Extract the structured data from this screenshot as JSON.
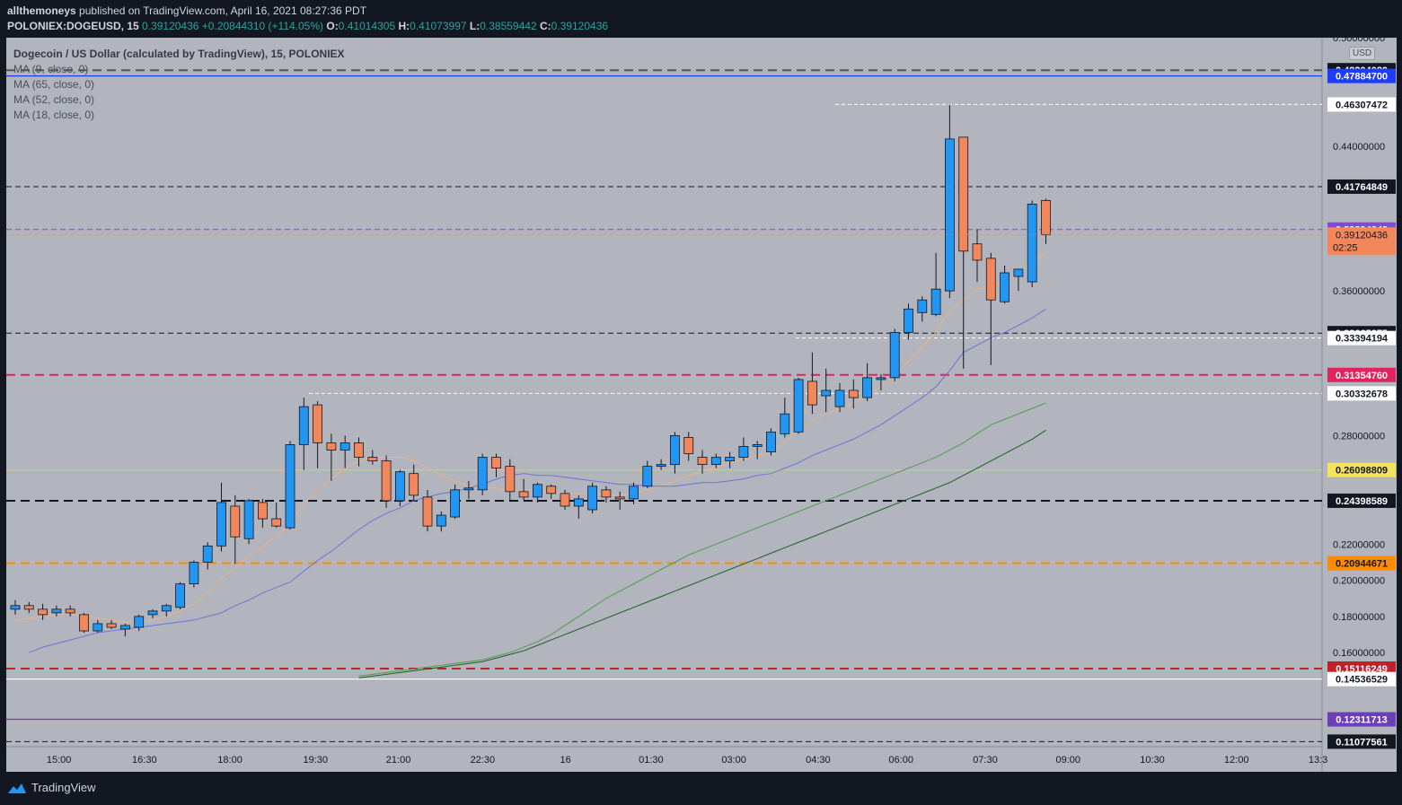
{
  "header": {
    "author": "allthemoneys",
    "published": "published on TradingView.com, April 16, 2021 08:27:36 PDT",
    "symbol": "POLONIEX:DOGEUSD, 15",
    "last": "0.39120436",
    "change": "+0.20844310 (+114.05%)",
    "o_label": "O:",
    "o": "0.41014305",
    "h_label": "H:",
    "h": "0.41073997",
    "l_label": "L:",
    "l": "0.38559442",
    "c_label": "C:",
    "c": "0.39120436"
  },
  "legend": {
    "title": "Dogecoin / US Dollar (calculated by TradingView), 15, POLONIEX",
    "ma1": "MA (9, close, 0)",
    "ma2": "MA (65, close, 0)",
    "ma3": "MA (52, close, 0)",
    "ma4": "MA (18, close, 0)"
  },
  "currency": "USD",
  "countdown": "02:25",
  "footer": {
    "brand": "TradingView"
  },
  "colors": {
    "background": "#b2b5be",
    "up": "#2196f3",
    "down": "#f2875b",
    "frame": "#131722",
    "axis_bg": "#b2b5be"
  },
  "chart_data": {
    "type": "candlestick",
    "ylim": [
      0.108,
      0.5
    ],
    "y_ticks": [
      "0.16000000",
      "0.18000000",
      "0.20000000",
      "0.22000000",
      "0.28000000",
      "0.36000000",
      "0.44000000",
      "0.50000000"
    ],
    "x_ticks": [
      "15:00",
      "16:30",
      "18:00",
      "19:30",
      "21:00",
      "22:30",
      "16",
      "01:30",
      "03:00",
      "04:30",
      "06:00",
      "07:30",
      "09:00",
      "10:30",
      "12:00",
      "13:3"
    ],
    "candles": [
      {
        "o": 0.184,
        "h": 0.189,
        "l": 0.181,
        "c": 0.186
      },
      {
        "o": 0.186,
        "h": 0.188,
        "l": 0.182,
        "c": 0.184
      },
      {
        "o": 0.184,
        "h": 0.187,
        "l": 0.178,
        "c": 0.181
      },
      {
        "o": 0.182,
        "h": 0.186,
        "l": 0.18,
        "c": 0.184
      },
      {
        "o": 0.184,
        "h": 0.186,
        "l": 0.18,
        "c": 0.182
      },
      {
        "o": 0.181,
        "h": 0.182,
        "l": 0.171,
        "c": 0.172
      },
      {
        "o": 0.172,
        "h": 0.178,
        "l": 0.171,
        "c": 0.176
      },
      {
        "o": 0.176,
        "h": 0.178,
        "l": 0.173,
        "c": 0.174
      },
      {
        "o": 0.173,
        "h": 0.176,
        "l": 0.169,
        "c": 0.175
      },
      {
        "o": 0.174,
        "h": 0.181,
        "l": 0.172,
        "c": 0.18
      },
      {
        "o": 0.181,
        "h": 0.184,
        "l": 0.179,
        "c": 0.183
      },
      {
        "o": 0.183,
        "h": 0.187,
        "l": 0.18,
        "c": 0.186
      },
      {
        "o": 0.185,
        "h": 0.199,
        "l": 0.184,
        "c": 0.198
      },
      {
        "o": 0.198,
        "h": 0.211,
        "l": 0.196,
        "c": 0.21
      },
      {
        "o": 0.21,
        "h": 0.221,
        "l": 0.206,
        "c": 0.219
      },
      {
        "o": 0.219,
        "h": 0.254,
        "l": 0.216,
        "c": 0.243
      },
      {
        "o": 0.241,
        "h": 0.247,
        "l": 0.209,
        "c": 0.224
      },
      {
        "o": 0.223,
        "h": 0.245,
        "l": 0.22,
        "c": 0.244
      },
      {
        "o": 0.243,
        "h": 0.245,
        "l": 0.229,
        "c": 0.234
      },
      {
        "o": 0.234,
        "h": 0.243,
        "l": 0.229,
        "c": 0.23
      },
      {
        "o": 0.229,
        "h": 0.277,
        "l": 0.228,
        "c": 0.275
      },
      {
        "o": 0.275,
        "h": 0.301,
        "l": 0.261,
        "c": 0.296
      },
      {
        "o": 0.297,
        "h": 0.299,
        "l": 0.262,
        "c": 0.276
      },
      {
        "o": 0.276,
        "h": 0.281,
        "l": 0.255,
        "c": 0.272
      },
      {
        "o": 0.272,
        "h": 0.28,
        "l": 0.262,
        "c": 0.276
      },
      {
        "o": 0.276,
        "h": 0.279,
        "l": 0.263,
        "c": 0.268
      },
      {
        "o": 0.268,
        "h": 0.272,
        "l": 0.264,
        "c": 0.266
      },
      {
        "o": 0.266,
        "h": 0.269,
        "l": 0.24,
        "c": 0.244
      },
      {
        "o": 0.244,
        "h": 0.261,
        "l": 0.241,
        "c": 0.26
      },
      {
        "o": 0.259,
        "h": 0.264,
        "l": 0.244,
        "c": 0.247
      },
      {
        "o": 0.246,
        "h": 0.25,
        "l": 0.227,
        "c": 0.23
      },
      {
        "o": 0.23,
        "h": 0.238,
        "l": 0.227,
        "c": 0.236
      },
      {
        "o": 0.235,
        "h": 0.253,
        "l": 0.234,
        "c": 0.25
      },
      {
        "o": 0.25,
        "h": 0.255,
        "l": 0.245,
        "c": 0.251
      },
      {
        "o": 0.25,
        "h": 0.27,
        "l": 0.247,
        "c": 0.268
      },
      {
        "o": 0.268,
        "h": 0.27,
        "l": 0.257,
        "c": 0.262
      },
      {
        "o": 0.263,
        "h": 0.267,
        "l": 0.244,
        "c": 0.249
      },
      {
        "o": 0.249,
        "h": 0.256,
        "l": 0.244,
        "c": 0.246
      },
      {
        "o": 0.246,
        "h": 0.254,
        "l": 0.243,
        "c": 0.253
      },
      {
        "o": 0.252,
        "h": 0.253,
        "l": 0.245,
        "c": 0.248
      },
      {
        "o": 0.248,
        "h": 0.25,
        "l": 0.239,
        "c": 0.241
      },
      {
        "o": 0.241,
        "h": 0.247,
        "l": 0.234,
        "c": 0.245
      },
      {
        "o": 0.239,
        "h": 0.254,
        "l": 0.237,
        "c": 0.252
      },
      {
        "o": 0.25,
        "h": 0.252,
        "l": 0.243,
        "c": 0.246
      },
      {
        "o": 0.246,
        "h": 0.249,
        "l": 0.239,
        "c": 0.245
      },
      {
        "o": 0.245,
        "h": 0.254,
        "l": 0.242,
        "c": 0.252
      },
      {
        "o": 0.252,
        "h": 0.266,
        "l": 0.251,
        "c": 0.263
      },
      {
        "o": 0.263,
        "h": 0.267,
        "l": 0.261,
        "c": 0.264
      },
      {
        "o": 0.264,
        "h": 0.282,
        "l": 0.259,
        "c": 0.28
      },
      {
        "o": 0.279,
        "h": 0.282,
        "l": 0.266,
        "c": 0.27
      },
      {
        "o": 0.268,
        "h": 0.272,
        "l": 0.259,
        "c": 0.264
      },
      {
        "o": 0.264,
        "h": 0.27,
        "l": 0.262,
        "c": 0.268
      },
      {
        "o": 0.266,
        "h": 0.271,
        "l": 0.262,
        "c": 0.268
      },
      {
        "o": 0.268,
        "h": 0.279,
        "l": 0.266,
        "c": 0.274
      },
      {
        "o": 0.274,
        "h": 0.277,
        "l": 0.267,
        "c": 0.275
      },
      {
        "o": 0.271,
        "h": 0.284,
        "l": 0.269,
        "c": 0.282
      },
      {
        "o": 0.281,
        "h": 0.301,
        "l": 0.279,
        "c": 0.292
      },
      {
        "o": 0.282,
        "h": 0.312,
        "l": 0.281,
        "c": 0.311
      },
      {
        "o": 0.31,
        "h": 0.326,
        "l": 0.292,
        "c": 0.297
      },
      {
        "o": 0.302,
        "h": 0.317,
        "l": 0.293,
        "c": 0.305
      },
      {
        "o": 0.296,
        "h": 0.309,
        "l": 0.293,
        "c": 0.305
      },
      {
        "o": 0.305,
        "h": 0.311,
        "l": 0.295,
        "c": 0.301
      },
      {
        "o": 0.301,
        "h": 0.32,
        "l": 0.299,
        "c": 0.312
      },
      {
        "o": 0.311,
        "h": 0.314,
        "l": 0.305,
        "c": 0.312
      },
      {
        "o": 0.312,
        "h": 0.339,
        "l": 0.31,
        "c": 0.337
      },
      {
        "o": 0.337,
        "h": 0.353,
        "l": 0.333,
        "c": 0.35
      },
      {
        "o": 0.348,
        "h": 0.357,
        "l": 0.343,
        "c": 0.355
      },
      {
        "o": 0.347,
        "h": 0.381,
        "l": 0.346,
        "c": 0.361
      },
      {
        "o": 0.36,
        "h": 0.463,
        "l": 0.356,
        "c": 0.444
      },
      {
        "o": 0.445,
        "h": 0.445,
        "l": 0.317,
        "c": 0.382
      },
      {
        "o": 0.386,
        "h": 0.394,
        "l": 0.365,
        "c": 0.377
      },
      {
        "o": 0.378,
        "h": 0.381,
        "l": 0.319,
        "c": 0.355
      },
      {
        "o": 0.354,
        "h": 0.374,
        "l": 0.353,
        "c": 0.37
      },
      {
        "o": 0.368,
        "h": 0.37,
        "l": 0.36,
        "c": 0.372
      },
      {
        "o": 0.365,
        "h": 0.41,
        "l": 0.362,
        "c": 0.408
      },
      {
        "o": 0.41,
        "h": 0.411,
        "l": 0.386,
        "c": 0.391
      }
    ],
    "series": [
      {
        "name": "MA (9, close, 0)",
        "color": "#e8b48a",
        "values": [
          0.178,
          0.179,
          0.18,
          0.181,
          0.181,
          0.18,
          0.179,
          0.178,
          0.177,
          0.177,
          0.178,
          0.18,
          0.183,
          0.187,
          0.193,
          0.201,
          0.207,
          0.213,
          0.219,
          0.224,
          0.232,
          0.242,
          0.25,
          0.256,
          0.262,
          0.266,
          0.268,
          0.268,
          0.268,
          0.266,
          0.262,
          0.258,
          0.255,
          0.252,
          0.251,
          0.251,
          0.25,
          0.25,
          0.25,
          0.249,
          0.248,
          0.248,
          0.248,
          0.247,
          0.247,
          0.248,
          0.25,
          0.252,
          0.255,
          0.258,
          0.26,
          0.263,
          0.265,
          0.267,
          0.269,
          0.271,
          0.276,
          0.283,
          0.288,
          0.292,
          0.295,
          0.298,
          0.302,
          0.307,
          0.313,
          0.321,
          0.329,
          0.337,
          0.349,
          0.355,
          0.361,
          0.362,
          0.366,
          0.37,
          0.375,
          0.382
        ]
      },
      {
        "name": "MA (18, close, 0)",
        "color": "#6f73d6",
        "values": [
          0.16,
          0.163,
          0.165,
          0.167,
          0.169,
          0.171,
          0.172,
          0.173,
          0.174,
          0.175,
          0.176,
          0.177,
          0.178,
          0.18,
          0.182,
          0.186,
          0.189,
          0.193,
          0.196,
          0.199,
          0.205,
          0.211,
          0.216,
          0.222,
          0.228,
          0.233,
          0.237,
          0.24,
          0.244,
          0.246,
          0.248,
          0.249,
          0.251,
          0.253,
          0.256,
          0.258,
          0.259,
          0.258,
          0.258,
          0.257,
          0.256,
          0.255,
          0.254,
          0.253,
          0.253,
          0.252,
          0.252,
          0.252,
          0.253,
          0.254,
          0.254,
          0.255,
          0.256,
          0.258,
          0.259,
          0.262,
          0.265,
          0.269,
          0.272,
          0.275,
          0.278,
          0.282,
          0.286,
          0.291,
          0.296,
          0.301,
          0.307,
          0.316,
          0.326,
          0.33,
          0.334,
          0.337,
          0.341,
          0.345,
          0.35
        ]
      },
      {
        "name": "MA (52, close, 0)",
        "color": "#4f9c4f",
        "values": [
          0.147,
          0.148,
          0.149,
          0.15,
          0.151,
          0.152,
          0.153,
          0.154,
          0.155,
          0.156,
          0.158,
          0.16,
          0.163,
          0.166,
          0.17,
          0.175,
          0.18,
          0.185,
          0.19,
          0.194,
          0.198,
          0.202,
          0.206,
          0.21,
          0.214,
          0.217,
          0.22,
          0.223,
          0.226,
          0.229,
          0.232,
          0.235,
          0.238,
          0.241,
          0.244,
          0.247,
          0.25,
          0.253,
          0.256,
          0.259,
          0.262,
          0.265,
          0.268,
          0.272,
          0.276,
          0.281,
          0.286,
          0.289,
          0.292,
          0.295,
          0.298
        ]
      },
      {
        "name": "MA (65, close, 0)",
        "color": "#1e5e1e",
        "values": [
          0.146,
          0.147,
          0.148,
          0.149,
          0.15,
          0.151,
          0.152,
          0.153,
          0.154,
          0.155,
          0.157,
          0.159,
          0.161,
          0.164,
          0.167,
          0.17,
          0.173,
          0.176,
          0.179,
          0.182,
          0.185,
          0.188,
          0.191,
          0.194,
          0.197,
          0.2,
          0.203,
          0.206,
          0.209,
          0.212,
          0.215,
          0.218,
          0.221,
          0.224,
          0.227,
          0.23,
          0.233,
          0.236,
          0.239,
          0.242,
          0.245,
          0.248,
          0.251,
          0.254,
          0.258,
          0.262,
          0.266,
          0.27,
          0.274,
          0.278,
          0.283
        ]
      }
    ],
    "levels": [
      {
        "price": 0.4820408,
        "label": "0.48204080",
        "color": "#555555",
        "style": "dash-thick",
        "badge_bg": "#131722",
        "badge_fg": "#ffffff"
      },
      {
        "price": 0.478847,
        "label": "0.47884700",
        "color": "#1e3cff",
        "style": "solid",
        "badge_bg": "#1e3cff",
        "badge_fg": "#ffffff"
      },
      {
        "price": 0.46307472,
        "label": "0.46307472",
        "color": "#ffffff",
        "style": "dash-short",
        "badge_bg": "#ffffff",
        "badge_fg": "#131722",
        "x_start_frac": 0.63
      },
      {
        "price": 0.41764849,
        "label": "0.41764849",
        "color": "#131722",
        "style": "dash",
        "badge_bg": "#131722",
        "badge_fg": "#ffffff"
      },
      {
        "price": 0.39394342,
        "label": "0.39394342",
        "color": "#7b4fc9",
        "style": "dash",
        "badge_bg": "#7b4fc9",
        "badge_fg": "#ffffff"
      },
      {
        "price": 0.33665275,
        "label": "0.33665275",
        "color": "#131722",
        "style": "dash",
        "badge_bg": "#131722",
        "badge_fg": "#ffffff"
      },
      {
        "price": 0.33394194,
        "label": "0.33394194",
        "color": "#ffffff",
        "style": "dash-short",
        "badge_bg": "#ffffff",
        "badge_fg": "#131722",
        "x_start_frac": 0.6
      },
      {
        "price": 0.3135476,
        "label": "0.31354760",
        "color": "#e0245e",
        "style": "dash-thick",
        "badge_bg": "#e0245e",
        "badge_fg": "#ffffff"
      },
      {
        "price": 0.30332678,
        "label": "0.30332678",
        "color": "#ffffff",
        "style": "dash-short",
        "badge_bg": "#ffffff",
        "badge_fg": "#131722",
        "x_start_frac": 0.23
      },
      {
        "price": 0.26098809,
        "label": "0.26098809",
        "color": "#e6d02c",
        "style": "solid",
        "badge_bg": "#f5e35a",
        "badge_fg": "#131722"
      },
      {
        "price": 0.24398589,
        "label": "0.24398589",
        "color": "#131722",
        "style": "dash-thick",
        "badge_bg": "#131722",
        "badge_fg": "#ffffff"
      },
      {
        "price": 0.20944671,
        "label": "0.20944671",
        "color": "#ff8c00",
        "style": "dash-thick",
        "badge_bg": "#ff8c00",
        "badge_fg": "#131722"
      },
      {
        "price": 0.15116249,
        "label": "0.15116249",
        "color": "#c0202a",
        "style": "dash-thick",
        "badge_bg": "#c0202a",
        "badge_fg": "#ffffff"
      },
      {
        "price": 0.14536529,
        "label": "0.14536529",
        "color": "#ffffff",
        "style": "solid",
        "badge_bg": "#ffffff",
        "badge_fg": "#131722"
      },
      {
        "price": 0.12311713,
        "label": "0.12311713",
        "color": "#6a3fb8",
        "style": "solid",
        "badge_bg": "#6a3fb8",
        "badge_fg": "#ffffff"
      },
      {
        "price": 0.11077561,
        "label": "0.11077561",
        "color": "#131722",
        "style": "dash",
        "badge_bg": "#131722",
        "badge_fg": "#ffffff"
      }
    ],
    "last_price": {
      "price": 0.39120436,
      "label": "0.39120436",
      "color": "#f2875b"
    }
  }
}
